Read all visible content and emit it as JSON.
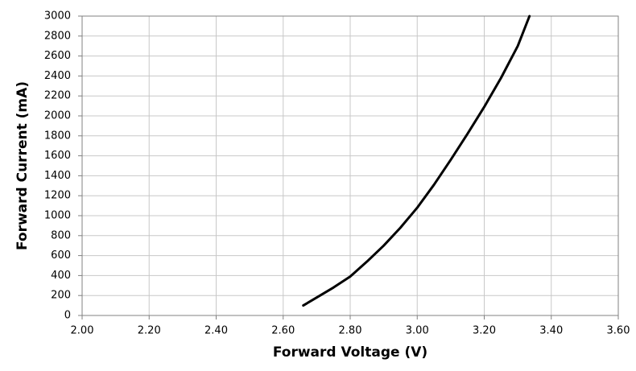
{
  "chart_data": {
    "type": "line",
    "xlabel": "Forward Voltage (V)",
    "ylabel": "Forward Current (mA)",
    "series": [
      {
        "name": null,
        "color": "#000000",
        "x": [
          2.66,
          2.7,
          2.75,
          2.8,
          2.85,
          2.9,
          2.95,
          3.0,
          3.05,
          3.1,
          3.15,
          3.2,
          3.25,
          3.3,
          3.335
        ],
        "values": [
          100,
          180,
          280,
          390,
          540,
          700,
          880,
          1080,
          1310,
          1560,
          1820,
          2090,
          2380,
          2700,
          3000
        ]
      }
    ],
    "xlim": [
      2.0,
      3.6
    ],
    "xticks": [
      {
        "value": 2.0,
        "label": "2.00"
      },
      {
        "value": 2.2,
        "label": "2.20"
      },
      {
        "value": 2.4,
        "label": "2.40"
      },
      {
        "value": 2.6,
        "label": "2.60"
      },
      {
        "value": 2.8,
        "label": "2.80"
      },
      {
        "value": 3.0,
        "label": "3.00"
      },
      {
        "value": 3.2,
        "label": "3.20"
      },
      {
        "value": 3.4,
        "label": "3.40"
      },
      {
        "value": 3.6,
        "label": "3.60"
      }
    ],
    "ylim": [
      0,
      3000
    ],
    "yticks": [
      0,
      200,
      400,
      600,
      800,
      1000,
      1200,
      1400,
      1600,
      1800,
      2000,
      2200,
      2400,
      2600,
      2800,
      3000
    ],
    "grid": true
  }
}
